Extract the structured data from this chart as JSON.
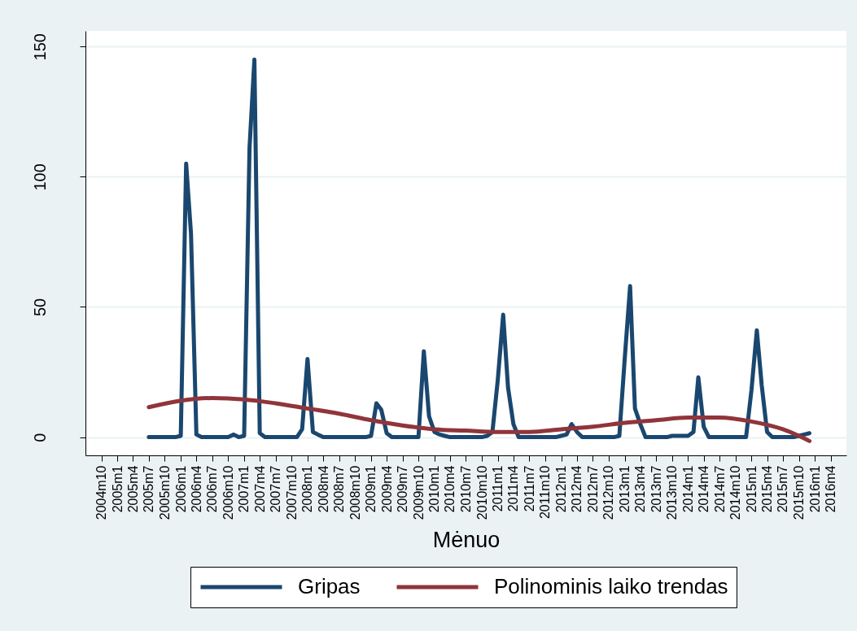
{
  "chart_data": {
    "type": "line",
    "xlabel": "Mėnuo",
    "x": [
      "2005-07",
      "2005-08",
      "2005-09",
      "2005-10",
      "2005-11",
      "2005-12",
      "2006-01",
      "2006-02",
      "2006-03",
      "2006-04",
      "2006-05",
      "2006-06",
      "2006-07",
      "2006-08",
      "2006-09",
      "2006-10",
      "2006-11",
      "2006-12",
      "2007-01",
      "2007-02",
      "2007-03",
      "2007-04",
      "2007-05",
      "2007-06",
      "2007-07",
      "2007-08",
      "2007-09",
      "2007-10",
      "2007-11",
      "2007-12",
      "2008-01",
      "2008-02",
      "2008-03",
      "2008-04",
      "2008-05",
      "2008-06",
      "2008-07",
      "2008-08",
      "2008-09",
      "2008-10",
      "2008-11",
      "2008-12",
      "2009-01",
      "2009-02",
      "2009-03",
      "2009-04",
      "2009-05",
      "2009-06",
      "2009-07",
      "2009-08",
      "2009-09",
      "2009-10",
      "2009-11",
      "2009-12",
      "2010-01",
      "2010-02",
      "2010-03",
      "2010-04",
      "2010-05",
      "2010-06",
      "2010-07",
      "2010-08",
      "2010-09",
      "2010-10",
      "2010-11",
      "2010-12",
      "2011-01",
      "2011-02",
      "2011-03",
      "2011-04",
      "2011-05",
      "2011-06",
      "2011-07",
      "2011-08",
      "2011-09",
      "2011-10",
      "2011-11",
      "2011-12",
      "2012-01",
      "2012-02",
      "2012-03",
      "2012-04",
      "2012-05",
      "2012-06",
      "2012-07",
      "2012-08",
      "2012-09",
      "2012-10",
      "2012-11",
      "2012-12",
      "2013-01",
      "2013-02",
      "2013-03",
      "2013-04",
      "2013-05",
      "2013-06",
      "2013-07",
      "2013-08",
      "2013-09",
      "2013-10",
      "2013-11",
      "2013-12",
      "2014-01",
      "2014-02",
      "2014-03",
      "2014-04",
      "2014-05",
      "2014-06",
      "2014-07",
      "2014-08",
      "2014-09",
      "2014-10",
      "2014-11",
      "2014-12",
      "2015-01",
      "2015-02",
      "2015-03",
      "2015-04",
      "2015-05",
      "2015-06",
      "2015-07",
      "2015-08",
      "2015-09",
      "2015-10",
      "2015-11",
      "2015-12"
    ],
    "series": [
      {
        "name": "Gripas",
        "color": "#1a476f",
        "values": [
          0,
          0,
          0,
          0,
          0,
          0,
          0.5,
          105,
          78,
          1,
          0,
          0,
          0,
          0,
          0,
          0,
          1,
          0,
          0.5,
          111,
          145,
          1.5,
          0,
          0,
          0,
          0,
          0,
          0,
          0,
          3,
          30,
          2,
          1,
          0,
          0,
          0,
          0,
          0,
          0,
          0,
          0,
          0,
          0.5,
          13,
          10.5,
          1.5,
          0,
          0,
          0,
          0,
          0,
          0,
          33,
          8,
          2,
          1,
          0.5,
          0,
          0,
          0,
          0,
          0,
          0,
          0,
          0.5,
          2,
          22,
          47,
          19,
          5,
          0,
          0,
          0,
          0,
          0,
          0,
          0,
          0,
          0.5,
          1,
          5,
          2,
          0,
          0,
          0,
          0,
          0,
          0,
          0,
          0.5,
          30,
          58,
          11,
          5,
          0,
          0,
          0,
          0,
          0,
          0.5,
          0.5,
          0.5,
          0.5,
          2,
          23,
          4,
          0,
          0,
          0,
          0,
          0,
          0,
          0,
          0,
          18,
          41,
          20,
          2,
          0,
          0,
          0,
          0,
          0,
          0.5,
          1,
          1.5
        ]
      },
      {
        "name": "Polinominis laiko trendas",
        "type": "line",
        "color": "#90353b",
        "x": [
          "2005-07",
          "2006-01",
          "2006-07",
          "2007-01",
          "2007-07",
          "2008-01",
          "2008-07",
          "2009-01",
          "2009-07",
          "2010-01",
          "2010-07",
          "2011-01",
          "2011-07",
          "2012-01",
          "2012-07",
          "2013-01",
          "2013-07",
          "2014-01",
          "2014-07",
          "2015-01",
          "2015-07",
          "2015-10",
          "2015-12"
        ],
        "values": [
          11.5,
          14,
          15,
          14.5,
          13,
          11,
          9,
          6.5,
          4.5,
          3,
          2.5,
          2,
          2,
          3,
          4,
          5.5,
          6.5,
          7.5,
          7.5,
          6,
          3,
          0.5,
          -1.5
        ]
      }
    ],
    "xlim": [
      "2004-07",
      "2016-07"
    ],
    "ylim": [
      -7,
      156
    ],
    "xticks": [
      {
        "value": "2004-10",
        "label": "2004m10"
      },
      {
        "value": "2005-01",
        "label": "2005m1"
      },
      {
        "value": "2005-04",
        "label": "2005m4"
      },
      {
        "value": "2005-07",
        "label": "2005m7"
      },
      {
        "value": "2005-10",
        "label": "2005m10"
      },
      {
        "value": "2006-01",
        "label": "2006m1"
      },
      {
        "value": "2006-04",
        "label": "2006m4"
      },
      {
        "value": "2006-07",
        "label": "2006m7"
      },
      {
        "value": "2006-10",
        "label": "2006m10"
      },
      {
        "value": "2007-01",
        "label": "2007m1"
      },
      {
        "value": "2007-04",
        "label": "2007m4"
      },
      {
        "value": "2007-07",
        "label": "2007m7"
      },
      {
        "value": "2007-10",
        "label": "2007m10"
      },
      {
        "value": "2008-01",
        "label": "2008m1"
      },
      {
        "value": "2008-04",
        "label": "2008m4"
      },
      {
        "value": "2008-07",
        "label": "2008m7"
      },
      {
        "value": "2008-10",
        "label": "2008m10"
      },
      {
        "value": "2009-01",
        "label": "2009m1"
      },
      {
        "value": "2009-04",
        "label": "2009m4"
      },
      {
        "value": "2009-07",
        "label": "2009m7"
      },
      {
        "value": "2009-10",
        "label": "2009m10"
      },
      {
        "value": "2010-01",
        "label": "2010m1"
      },
      {
        "value": "2010-04",
        "label": "2010m4"
      },
      {
        "value": "2010-07",
        "label": "2010m7"
      },
      {
        "value": "2010-10",
        "label": "2010m10"
      },
      {
        "value": "2011-01",
        "label": "2011m1"
      },
      {
        "value": "2011-04",
        "label": "2011m4"
      },
      {
        "value": "2011-07",
        "label": "2011m7"
      },
      {
        "value": "2011-10",
        "label": "2011m10"
      },
      {
        "value": "2012-01",
        "label": "2012m1"
      },
      {
        "value": "2012-04",
        "label": "2012m4"
      },
      {
        "value": "2012-07",
        "label": "2012m7"
      },
      {
        "value": "2012-10",
        "label": "2012m10"
      },
      {
        "value": "2013-01",
        "label": "2013m1"
      },
      {
        "value": "2013-04",
        "label": "2013m4"
      },
      {
        "value": "2013-07",
        "label": "2013m7"
      },
      {
        "value": "2013-10",
        "label": "2013m10"
      },
      {
        "value": "2014-01",
        "label": "2014m1"
      },
      {
        "value": "2014-04",
        "label": "2014m4"
      },
      {
        "value": "2014-07",
        "label": "2014m7"
      },
      {
        "value": "2014-10",
        "label": "2014m10"
      },
      {
        "value": "2015-01",
        "label": "2015m1"
      },
      {
        "value": "2015-04",
        "label": "2015m4"
      },
      {
        "value": "2015-07",
        "label": "2015m7"
      },
      {
        "value": "2015-10",
        "label": "2015m10"
      },
      {
        "value": "2016-01",
        "label": "2016m1"
      },
      {
        "value": "2016-04",
        "label": "2016m4"
      }
    ],
    "yticks": [
      0,
      50,
      100,
      150
    ],
    "grid": "y",
    "legend": "bottom"
  }
}
